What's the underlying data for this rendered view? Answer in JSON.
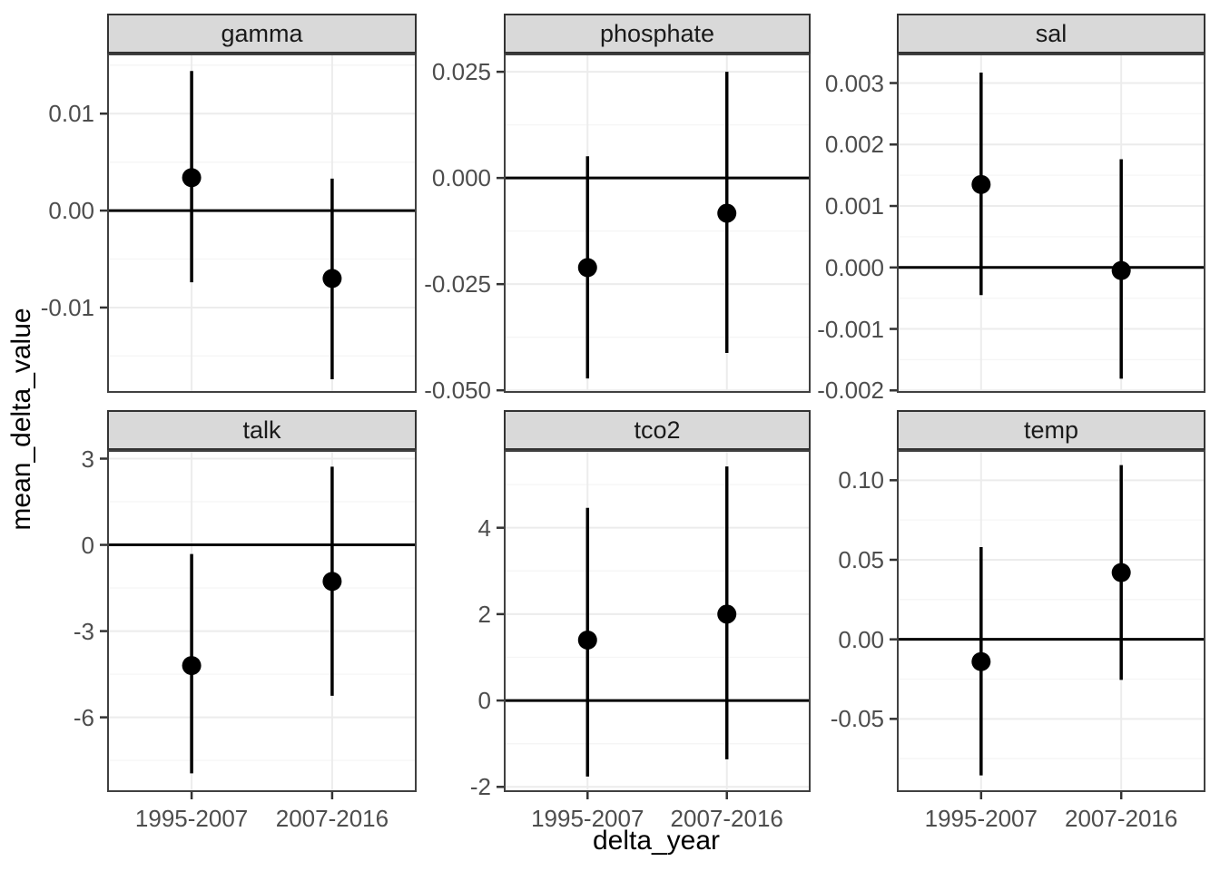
{
  "chart_data": {
    "type": "scatter",
    "subtype": "faceted-pointrange",
    "title": "",
    "xlabel": "delta_year",
    "ylabel": "mean_delta_value",
    "grid": true,
    "legend_position": "none",
    "reference_line_y": 0,
    "categories": [
      "1995-2007",
      "2007-2016"
    ],
    "facets": [
      {
        "label": "gamma",
        "ylim": [
          -0.0188,
          0.0162
        ],
        "yticks": [
          {
            "value": 0.01,
            "label": "0.01"
          },
          {
            "value": 0.0,
            "label": "0.00"
          },
          {
            "value": -0.01,
            "label": "-0.01"
          }
        ],
        "yminor": [
          0.015,
          0.005,
          -0.005,
          -0.015
        ],
        "points": [
          {
            "category": "1995-2007",
            "mean": 0.0034,
            "lower": -0.0074,
            "upper": 0.0144
          },
          {
            "category": "2007-2016",
            "mean": -0.007,
            "lower": -0.0174,
            "upper": 0.0033
          }
        ]
      },
      {
        "label": "phosphate",
        "ylim": [
          -0.0506,
          0.0293
        ],
        "yticks": [
          {
            "value": 0.025,
            "label": "0.025"
          },
          {
            "value": 0.0,
            "label": "0.000"
          },
          {
            "value": -0.025,
            "label": "-0.025"
          },
          {
            "value": -0.05,
            "label": "-0.050"
          }
        ],
        "yminor": [
          0.0125,
          -0.0125,
          -0.0375
        ],
        "points": [
          {
            "category": "1995-2007",
            "mean": -0.0211,
            "lower": -0.0472,
            "upper": 0.0051
          },
          {
            "category": "2007-2016",
            "mean": -0.0083,
            "lower": -0.0412,
            "upper": 0.025
          }
        ]
      },
      {
        "label": "sal",
        "ylim": [
          -0.00204,
          0.00348
        ],
        "yticks": [
          {
            "value": 0.003,
            "label": "0.003"
          },
          {
            "value": 0.002,
            "label": "0.002"
          },
          {
            "value": 0.001,
            "label": "0.001"
          },
          {
            "value": 0.0,
            "label": "0.000"
          },
          {
            "value": -0.001,
            "label": "-0.001"
          },
          {
            "value": -0.002,
            "label": "-0.002"
          }
        ],
        "yminor": [
          0.0025,
          0.0015,
          0.0005,
          -0.0005,
          -0.0015
        ],
        "points": [
          {
            "category": "1995-2007",
            "mean": 0.00135,
            "lower": -0.00045,
            "upper": 0.00317
          },
          {
            "category": "2007-2016",
            "mean": -5e-05,
            "lower": -0.00181,
            "upper": 0.00176
          }
        ]
      },
      {
        "label": "talk",
        "ylim": [
          -8.6,
          3.3
        ],
        "yticks": [
          {
            "value": 3,
            "label": "3"
          },
          {
            "value": 0,
            "label": "0"
          },
          {
            "value": -3,
            "label": "-3"
          },
          {
            "value": -6,
            "label": "-6"
          }
        ],
        "yminor": [
          1.5,
          -1.5,
          -4.5,
          -7.5
        ],
        "points": [
          {
            "category": "1995-2007",
            "mean": -4.2,
            "lower": -7.95,
            "upper": -0.32
          },
          {
            "category": "2007-2016",
            "mean": -1.27,
            "lower": -5.25,
            "upper": 2.72
          }
        ]
      },
      {
        "label": "tco2",
        "ylim": [
          -2.12,
          5.8
        ],
        "yticks": [
          {
            "value": 4,
            "label": "4"
          },
          {
            "value": 2,
            "label": "2"
          },
          {
            "value": 0,
            "label": "0"
          },
          {
            "value": -2,
            "label": "-2"
          }
        ],
        "yminor": [
          5,
          3,
          1,
          -1
        ],
        "points": [
          {
            "category": "1995-2007",
            "mean": 1.4,
            "lower": -1.76,
            "upper": 4.46
          },
          {
            "category": "2007-2016",
            "mean": 2.0,
            "lower": -1.36,
            "upper": 5.42
          }
        ]
      },
      {
        "label": "temp",
        "ylim": [
          -0.096,
          0.119
        ],
        "yticks": [
          {
            "value": 0.1,
            "label": "0.10"
          },
          {
            "value": 0.05,
            "label": "0.05"
          },
          {
            "value": 0.0,
            "label": "0.00"
          },
          {
            "value": -0.05,
            "label": "-0.05"
          }
        ],
        "yminor": [
          0.075,
          0.025,
          -0.025,
          -0.075
        ],
        "points": [
          {
            "category": "1995-2007",
            "mean": -0.014,
            "lower": -0.0855,
            "upper": 0.058
          },
          {
            "category": "2007-2016",
            "mean": 0.042,
            "lower": -0.0255,
            "upper": 0.1095
          }
        ]
      }
    ]
  },
  "colors": {
    "point": "#000000",
    "errorbar": "#000000",
    "reference_line": "#000000",
    "strip_bg": "#d9d9d9",
    "strip_border": "#333333",
    "panel_bg": "#ffffff",
    "panel_border": "#404040",
    "grid_major": "#ececec",
    "grid_minor": "#f5f5f5",
    "tick_mark": "#333333",
    "tick_label": "#4d4d4d",
    "axis_title": "#000000"
  }
}
